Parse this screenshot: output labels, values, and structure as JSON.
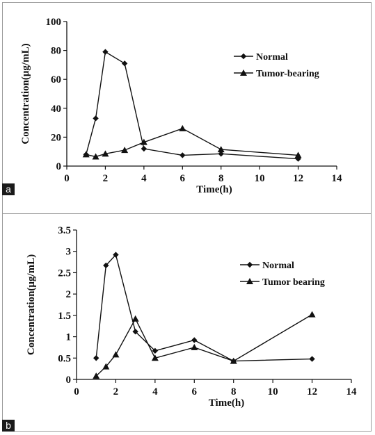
{
  "chart_data": [
    {
      "panel": "a",
      "type": "line",
      "xlabel": "Time(h)",
      "ylabel": "Concentration(μg/mL)",
      "xlim": [
        0,
        14
      ],
      "ylim": [
        0,
        100
      ],
      "xticks": [
        0,
        2,
        4,
        6,
        8,
        10,
        12,
        14
      ],
      "yticks": [
        0,
        20,
        40,
        60,
        80,
        100
      ],
      "grid": false,
      "legend_position": "top-right",
      "series": [
        {
          "name": "Normal",
          "marker": "diamond",
          "x": [
            1,
            1.5,
            2,
            3,
            4,
            6,
            8,
            12
          ],
          "y": [
            8,
            33,
            79,
            71,
            12,
            7.5,
            8.5,
            5
          ]
        },
        {
          "name": "Tumor-bearing",
          "marker": "triangle",
          "x": [
            1,
            1.5,
            2,
            3,
            4,
            6,
            8,
            12
          ],
          "y": [
            8,
            6.5,
            8.5,
            11,
            16.5,
            26,
            11.5,
            7.5
          ]
        }
      ]
    },
    {
      "panel": "b",
      "type": "line",
      "xlabel": "Time(h)",
      "ylabel": "Concentration(μg/mL)",
      "xlim": [
        0,
        14
      ],
      "ylim": [
        0,
        3.5
      ],
      "xticks": [
        0,
        2,
        4,
        6,
        8,
        10,
        12,
        14
      ],
      "yticks": [
        0,
        0.5,
        1,
        1.5,
        2,
        2.5,
        3,
        3.5
      ],
      "grid": false,
      "legend_position": "top-right",
      "series": [
        {
          "name": "Normal",
          "marker": "diamond",
          "x": [
            1,
            1.5,
            2,
            3,
            4,
            6,
            8,
            12
          ],
          "y": [
            0.5,
            2.67,
            2.92,
            1.12,
            0.67,
            0.92,
            0.43,
            0.48
          ]
        },
        {
          "name": "Tumor bearing",
          "marker": "triangle",
          "x": [
            1,
            1.5,
            2,
            3,
            4,
            6,
            8,
            12
          ],
          "y": [
            0.08,
            0.3,
            0.58,
            1.42,
            0.5,
            0.75,
            0.43,
            1.52
          ]
        }
      ]
    }
  ]
}
